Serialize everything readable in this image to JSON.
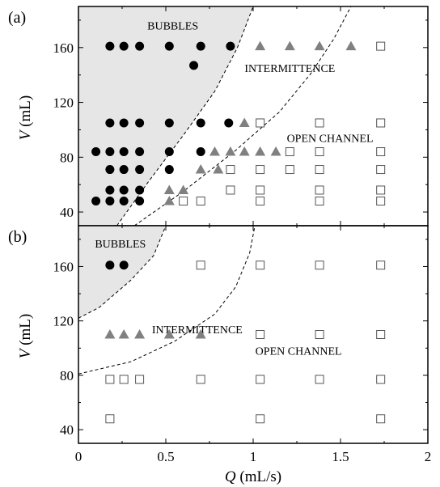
{
  "chart_data": [
    {
      "panel_label": "(a)",
      "type": "scatter",
      "xlim": [
        0,
        2
      ],
      "ylim": [
        30,
        190
      ],
      "yticks": [
        40,
        80,
        120,
        160
      ],
      "xticks": [
        0,
        0.5,
        1,
        1.5,
        2
      ],
      "ylabel_italic": "V",
      "ylabel_unit": " (mL)",
      "show_x_ticklabels": false,
      "region_labels": [
        {
          "text": "BUBBLES",
          "x": 0.54,
          "y": 176
        },
        {
          "text": "INTERMITTENCE",
          "x": 1.21,
          "y": 145
        },
        {
          "text": "OPEN CHANNEL",
          "x": 1.44,
          "y": 94
        }
      ],
      "shaded_boundary": [
        [
          0.22,
          30
        ],
        [
          0.4,
          62
        ],
        [
          0.6,
          96
        ],
        [
          0.78,
          128
        ],
        [
          0.91,
          160
        ],
        [
          1.0,
          190
        ]
      ],
      "dashed_boundary": [
        [
          0.32,
          30
        ],
        [
          0.6,
          55
        ],
        [
          0.9,
          85
        ],
        [
          1.15,
          113
        ],
        [
          1.33,
          141
        ],
        [
          1.46,
          166
        ],
        [
          1.56,
          190
        ]
      ],
      "series": [
        {
          "marker": "circle",
          "points": [
            [
              0.18,
              161
            ],
            [
              0.26,
              161
            ],
            [
              0.35,
              161
            ],
            [
              0.52,
              161
            ],
            [
              0.7,
              161
            ],
            [
              0.87,
              161
            ],
            [
              0.66,
              147
            ],
            [
              0.18,
              105
            ],
            [
              0.26,
              105
            ],
            [
              0.35,
              105
            ],
            [
              0.52,
              105
            ],
            [
              0.7,
              105
            ],
            [
              0.86,
              105
            ],
            [
              0.1,
              84
            ],
            [
              0.18,
              84
            ],
            [
              0.26,
              84
            ],
            [
              0.35,
              84
            ],
            [
              0.52,
              84
            ],
            [
              0.7,
              84
            ],
            [
              0.18,
              71
            ],
            [
              0.26,
              71
            ],
            [
              0.35,
              71
            ],
            [
              0.52,
              71
            ],
            [
              0.18,
              56
            ],
            [
              0.26,
              56
            ],
            [
              0.35,
              56
            ],
            [
              0.1,
              48
            ],
            [
              0.18,
              48
            ],
            [
              0.26,
              48
            ],
            [
              0.35,
              48
            ]
          ]
        },
        {
          "marker": "triangle",
          "points": [
            [
              1.04,
              161
            ],
            [
              1.21,
              161
            ],
            [
              1.38,
              161
            ],
            [
              1.56,
              161
            ],
            [
              0.95,
              105
            ],
            [
              0.78,
              84
            ],
            [
              0.87,
              84
            ],
            [
              0.95,
              84
            ],
            [
              1.04,
              84
            ],
            [
              1.13,
              84
            ],
            [
              0.7,
              71
            ],
            [
              0.8,
              71
            ],
            [
              0.52,
              56
            ],
            [
              0.6,
              56
            ],
            [
              0.52,
              48
            ]
          ]
        },
        {
          "marker": "square",
          "points": [
            [
              1.73,
              161
            ],
            [
              1.04,
              105
            ],
            [
              1.38,
              105
            ],
            [
              1.73,
              105
            ],
            [
              1.21,
              84
            ],
            [
              1.38,
              84
            ],
            [
              1.73,
              84
            ],
            [
              0.87,
              71
            ],
            [
              1.04,
              71
            ],
            [
              1.21,
              71
            ],
            [
              1.38,
              71
            ],
            [
              1.73,
              71
            ],
            [
              0.87,
              56
            ],
            [
              1.04,
              56
            ],
            [
              1.38,
              56
            ],
            [
              1.73,
              56
            ],
            [
              0.6,
              48
            ],
            [
              0.7,
              48
            ],
            [
              1.04,
              48
            ],
            [
              1.38,
              48
            ],
            [
              1.73,
              48
            ]
          ]
        }
      ]
    },
    {
      "panel_label": "(b)",
      "type": "scatter",
      "xlim": [
        0,
        2
      ],
      "ylim": [
        30,
        190
      ],
      "yticks": [
        40,
        80,
        120,
        160
      ],
      "xticks": [
        0,
        0.5,
        1,
        1.5,
        2
      ],
      "xticklabels": [
        "0",
        "0.5",
        "1",
        "1.5",
        "2"
      ],
      "ylabel_italic": "V",
      "ylabel_unit": " (mL)",
      "xlabel_italic": "Q",
      "xlabel_unit": " (mL/s)",
      "show_x_ticklabels": true,
      "region_labels": [
        {
          "text": "BUBBLES",
          "x": 0.24,
          "y": 177
        },
        {
          "text": "INTERMITTENCE",
          "x": 0.68,
          "y": 114
        },
        {
          "text": "OPEN CHANNEL",
          "x": 1.26,
          "y": 98
        }
      ],
      "shaded_boundary": [
        [
          0.0,
          122
        ],
        [
          0.12,
          130
        ],
        [
          0.3,
          150
        ],
        [
          0.43,
          168
        ],
        [
          0.5,
          190
        ]
      ],
      "dashed_boundary": [
        [
          0.0,
          81
        ],
        [
          0.3,
          90
        ],
        [
          0.55,
          105
        ],
        [
          0.78,
          125
        ],
        [
          0.9,
          145
        ],
        [
          0.98,
          170
        ],
        [
          1.01,
          190
        ]
      ],
      "series": [
        {
          "marker": "circle",
          "points": [
            [
              0.18,
              161
            ],
            [
              0.26,
              161
            ]
          ]
        },
        {
          "marker": "triangle",
          "points": [
            [
              0.18,
              110
            ],
            [
              0.26,
              110
            ],
            [
              0.35,
              110
            ],
            [
              0.52,
              110
            ],
            [
              0.7,
              110
            ]
          ]
        },
        {
          "marker": "square",
          "points": [
            [
              0.7,
              161
            ],
            [
              1.04,
              161
            ],
            [
              1.38,
              161
            ],
            [
              1.73,
              161
            ],
            [
              1.04,
              110
            ],
            [
              1.38,
              110
            ],
            [
              1.73,
              110
            ],
            [
              0.18,
              77
            ],
            [
              0.26,
              77
            ],
            [
              0.35,
              77
            ],
            [
              0.7,
              77
            ],
            [
              1.04,
              77
            ],
            [
              1.38,
              77
            ],
            [
              1.73,
              77
            ],
            [
              0.18,
              48
            ],
            [
              1.04,
              48
            ],
            [
              1.73,
              48
            ]
          ]
        }
      ]
    }
  ]
}
